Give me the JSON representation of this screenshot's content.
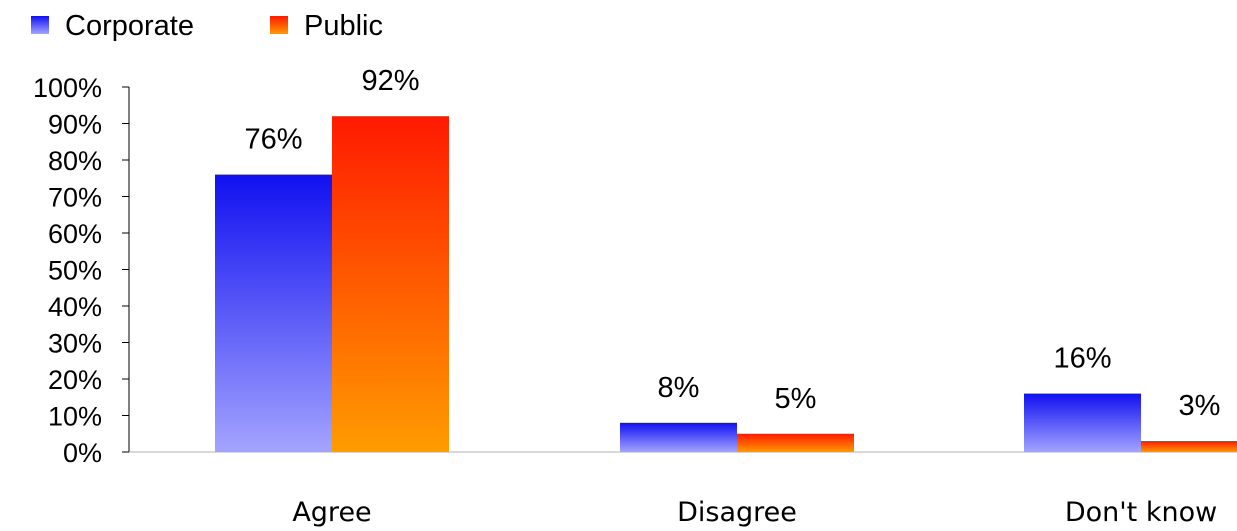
{
  "chart_data": {
    "type": "bar",
    "categories": [
      "Agree",
      "Disagree",
      "Don't know"
    ],
    "series": [
      {
        "name": "Corporate",
        "values": [
          76,
          8,
          16
        ],
        "labels": [
          "76%",
          "8%",
          "16%"
        ]
      },
      {
        "name": "Public",
        "values": [
          92,
          5,
          3
        ],
        "labels": [
          "92%",
          "5%",
          "3%"
        ]
      }
    ],
    "ylim": [
      0,
      100
    ],
    "yticks": [
      "0%",
      "10%",
      "20%",
      "30%",
      "40%",
      "50%",
      "60%",
      "70%",
      "80%",
      "90%",
      "100%"
    ],
    "grid": false,
    "legend_position": "top-left",
    "colors": {
      "Corporate": {
        "top": "#1010f0",
        "bottom": "#a4a4ff"
      },
      "Public": {
        "top": "#ff1a00",
        "bottom": "#ff9c00"
      }
    }
  }
}
